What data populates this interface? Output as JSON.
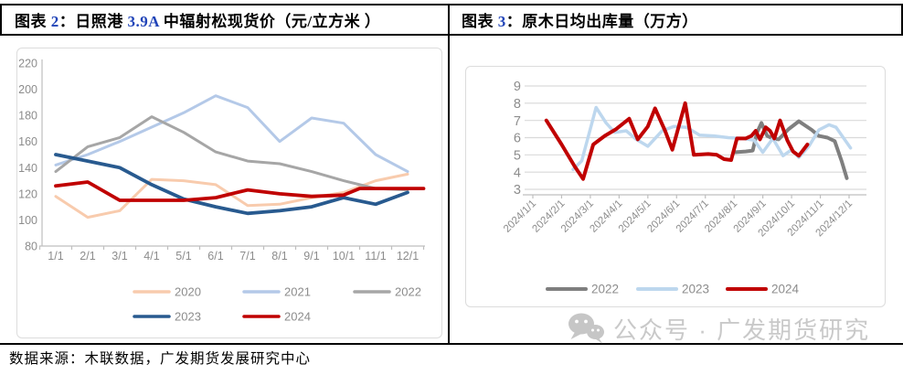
{
  "header": {
    "number_color": "#2144B8",
    "left_title": {
      "prefix": "图表 ",
      "number": "2",
      "mid": "：日照港 ",
      "spec": "3.9A",
      "rest": " 中辐射松现货价（元/立方米 ）"
    },
    "right_title": {
      "prefix": "图表 ",
      "number": "3",
      "rest": "：原木日均出库量（万方）"
    }
  },
  "footer": {
    "source_text": "数据来源：木联数据，广发期货发展研究中心"
  },
  "watermark": {
    "icon": "wechat-icon",
    "text": "公众号 · 广发期货研究",
    "color": "#C9C9C9"
  },
  "chart_style": {
    "axis_text_color": "#8C8C8C",
    "axis_line_color": "#BFBFBF",
    "grid_color": "#D9D9D9"
  },
  "chart_data": [
    {
      "type": "line",
      "title": "日照港3.9A中辐射松现货价",
      "ylabel": "元/立方米",
      "x_type": "category",
      "categories": [
        "1/1",
        "2/1",
        "3/1",
        "4/1",
        "5/1",
        "6/1",
        "7/1",
        "8/1",
        "9/1",
        "10/1",
        "11/1",
        "12/1"
      ],
      "ylim": [
        80,
        220
      ],
      "yticks": [
        80,
        100,
        120,
        140,
        160,
        180,
        200,
        220
      ],
      "grid": false,
      "legend_position": "bottom",
      "series": [
        {
          "name": "2020",
          "color": "#F8CBAD",
          "points": [
            [
              0,
              118
            ],
            [
              1,
              102
            ],
            [
              2,
              107
            ],
            [
              3,
              131
            ],
            [
              4,
              130
            ],
            [
              5,
              127
            ],
            [
              6,
              111
            ],
            [
              7,
              112
            ],
            [
              8,
              117
            ],
            [
              9,
              121
            ],
            [
              10,
              130
            ],
            [
              11,
              135
            ]
          ]
        },
        {
          "name": "2021",
          "color": "#B4C9E8",
          "points": [
            [
              0,
              142
            ],
            [
              1,
              150
            ],
            [
              2,
              160
            ],
            [
              3,
              171
            ],
            [
              4,
              182
            ],
            [
              5,
              195
            ],
            [
              6,
              186
            ],
            [
              7,
              160
            ],
            [
              8,
              178
            ],
            [
              9,
              174
            ],
            [
              10,
              150
            ],
            [
              11,
              137
            ]
          ]
        },
        {
          "name": "2022",
          "color": "#A6A6A6",
          "points": [
            [
              0,
              137
            ],
            [
              1,
              156
            ],
            [
              2,
              163
            ],
            [
              3,
              179
            ],
            [
              4,
              167
            ],
            [
              5,
              152
            ],
            [
              6,
              145
            ],
            [
              7,
              143
            ],
            [
              8,
              137
            ],
            [
              9,
              130
            ],
            [
              10,
              124
            ],
            [
              11,
              123
            ]
          ]
        },
        {
          "name": "2023",
          "color": "#285A8F",
          "points": [
            [
              0,
              150
            ],
            [
              1,
              145
            ],
            [
              2,
              140
            ],
            [
              3,
              127
            ],
            [
              4,
              116
            ],
            [
              5,
              110
            ],
            [
              6,
              105
            ],
            [
              7,
              107
            ],
            [
              8,
              110
            ],
            [
              9,
              117
            ],
            [
              10,
              112
            ],
            [
              11,
              121
            ]
          ]
        },
        {
          "name": "2024",
          "color": "#C00000",
          "points": [
            [
              0,
              126
            ],
            [
              1,
              129
            ],
            [
              2,
              115
            ],
            [
              3,
              115
            ],
            [
              4,
              115
            ],
            [
              5,
              117
            ],
            [
              6,
              123
            ],
            [
              7,
              120
            ],
            [
              8,
              118
            ],
            [
              9,
              119
            ],
            [
              9.5,
              124
            ],
            [
              11.5,
              124
            ]
          ]
        }
      ]
    },
    {
      "type": "line",
      "title": "原木日均出库量",
      "ylabel": "万方",
      "x_type": "date",
      "categories": [
        "2024/1/1",
        "2024/2/1",
        "2024/3/1",
        "2024/4/1",
        "2024/5/1",
        "2024/6/1",
        "2024/7/1",
        "2024/8/1",
        "2024/9/1",
        "2024/10/1",
        "2024/11/1",
        "2024/12/1"
      ],
      "ylim": [
        3,
        9
      ],
      "yticks": [
        3,
        4,
        5,
        6,
        7,
        8,
        9
      ],
      "grid": true,
      "legend_position": "bottom",
      "series": [
        {
          "name": "2022",
          "color": "#7F7F7F",
          "points": [
            [
              7.0,
              5.15
            ],
            [
              7.4,
              5.2
            ],
            [
              7.65,
              5.25
            ],
            [
              7.8,
              6.3
            ],
            [
              7.95,
              6.85
            ],
            [
              8.15,
              6.1
            ],
            [
              8.35,
              5.95
            ],
            [
              8.55,
              5.9
            ],
            [
              8.9,
              6.5
            ],
            [
              9.25,
              6.95
            ],
            [
              9.7,
              6.45
            ],
            [
              9.95,
              6.1
            ],
            [
              10.25,
              6.0
            ],
            [
              10.5,
              5.8
            ],
            [
              10.75,
              4.6
            ],
            [
              10.92,
              3.65
            ]
          ]
        },
        {
          "name": "2023",
          "color": "#BDD7EE",
          "points": [
            [
              1.4,
              4.15
            ],
            [
              1.7,
              4.65
            ],
            [
              2.2,
              7.75
            ],
            [
              2.55,
              6.85
            ],
            [
              2.85,
              6.3
            ],
            [
              3.25,
              6.4
            ],
            [
              3.6,
              5.9
            ],
            [
              4.0,
              5.5
            ],
            [
              4.5,
              6.4
            ],
            [
              4.9,
              6.65
            ],
            [
              5.35,
              6.6
            ],
            [
              5.8,
              6.15
            ],
            [
              6.3,
              6.1
            ],
            [
              6.8,
              6.0
            ],
            [
              7.3,
              5.95
            ],
            [
              7.7,
              5.85
            ],
            [
              8.0,
              5.15
            ],
            [
              8.35,
              5.95
            ],
            [
              8.7,
              4.95
            ],
            [
              9.0,
              5.3
            ],
            [
              9.25,
              4.85
            ],
            [
              9.6,
              5.5
            ],
            [
              9.95,
              6.45
            ],
            [
              10.3,
              6.75
            ],
            [
              10.55,
              6.6
            ],
            [
              10.8,
              6.0
            ],
            [
              11.05,
              5.4
            ]
          ]
        },
        {
          "name": "2024",
          "color": "#C00000",
          "points": [
            [
              0.47,
              7.0
            ],
            [
              1.0,
              5.6
            ],
            [
              1.45,
              4.35
            ],
            [
              1.75,
              3.6
            ],
            [
              2.1,
              5.6
            ],
            [
              2.5,
              6.1
            ],
            [
              2.9,
              6.5
            ],
            [
              3.35,
              7.1
            ],
            [
              3.65,
              5.9
            ],
            [
              4.0,
              6.65
            ],
            [
              4.25,
              7.7
            ],
            [
              4.6,
              6.4
            ],
            [
              4.85,
              5.3
            ],
            [
              5.3,
              8.0
            ],
            [
              5.6,
              5.0
            ],
            [
              6.1,
              5.05
            ],
            [
              6.4,
              5.0
            ],
            [
              6.65,
              4.75
            ],
            [
              6.9,
              4.7
            ],
            [
              7.1,
              5.95
            ],
            [
              7.4,
              5.95
            ],
            [
              7.6,
              6.1
            ],
            [
              7.75,
              6.4
            ],
            [
              7.9,
              5.9
            ],
            [
              8.1,
              6.6
            ],
            [
              8.25,
              6.4
            ],
            [
              8.4,
              5.95
            ],
            [
              8.6,
              7.0
            ],
            [
              8.85,
              5.85
            ],
            [
              9.05,
              5.2
            ],
            [
              9.25,
              4.95
            ],
            [
              9.55,
              5.6
            ]
          ]
        }
      ]
    }
  ]
}
